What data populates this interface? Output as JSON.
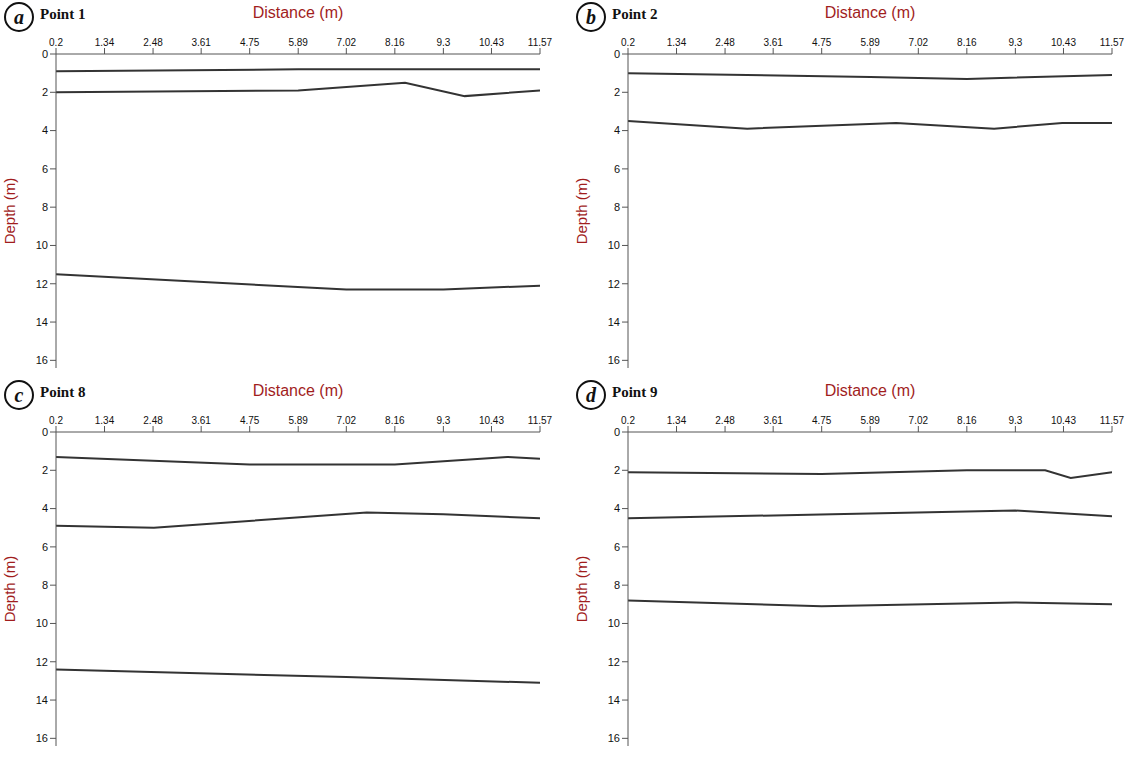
{
  "chart_data": [
    {
      "type": "line",
      "panel": "a",
      "title": "Point 1",
      "x_label": "Distance (m)",
      "y_label": "Depth (m)",
      "xlim": [
        0.2,
        11.57
      ],
      "xticks": [
        0.2,
        1.34,
        2.48,
        3.61,
        4.75,
        5.89,
        7.02,
        8.16,
        9.3,
        10.43,
        11.57
      ],
      "ylim": [
        0,
        16.4
      ],
      "yticks": [
        0,
        2,
        4,
        6,
        8,
        10,
        12,
        14,
        16
      ],
      "grid": false,
      "series": [
        {
          "color": "#333333",
          "x": [
            0.2,
            5.89,
            11.57
          ],
          "values": [
            0.9,
            0.8,
            0.8
          ]
        },
        {
          "color": "#333333",
          "x": [
            0.2,
            5.89,
            8.4,
            9.8,
            11.57
          ],
          "values": [
            2.0,
            1.9,
            1.5,
            2.2,
            1.9
          ]
        },
        {
          "color": "#333333",
          "x": [
            0.2,
            7.02,
            9.3,
            11.57
          ],
          "values": [
            11.5,
            12.3,
            12.3,
            12.1
          ]
        }
      ]
    },
    {
      "type": "line",
      "panel": "b",
      "title": "Point 2",
      "x_label": "Distance (m)",
      "y_label": "Depth (m)",
      "xlim": [
        0.2,
        11.57
      ],
      "xticks": [
        0.2,
        1.34,
        2.48,
        3.61,
        4.75,
        5.89,
        7.02,
        8.16,
        9.3,
        10.43,
        11.57
      ],
      "ylim": [
        0,
        16.4
      ],
      "yticks": [
        0,
        2,
        4,
        6,
        8,
        10,
        12,
        14,
        16
      ],
      "grid": false,
      "series": [
        {
          "color": "#333333",
          "x": [
            0.2,
            5.89,
            8.16,
            11.57
          ],
          "values": [
            1.0,
            1.2,
            1.3,
            1.1
          ]
        },
        {
          "color": "#333333",
          "x": [
            0.2,
            3.0,
            6.5,
            8.8,
            10.4,
            11.57
          ],
          "values": [
            3.5,
            3.9,
            3.6,
            3.9,
            3.6,
            3.6
          ]
        }
      ]
    },
    {
      "type": "line",
      "panel": "c",
      "title": "Point 8",
      "x_label": "Distance (m)",
      "y_label": "Depth (m)",
      "xlim": [
        0.2,
        11.57
      ],
      "xticks": [
        0.2,
        1.34,
        2.48,
        3.61,
        4.75,
        5.89,
        7.02,
        8.16,
        9.3,
        10.43,
        11.57
      ],
      "ylim": [
        0,
        16.4
      ],
      "yticks": [
        0,
        2,
        4,
        6,
        8,
        10,
        12,
        14,
        16
      ],
      "grid": false,
      "series": [
        {
          "color": "#333333",
          "x": [
            0.2,
            4.75,
            8.16,
            10.8,
            11.57
          ],
          "values": [
            1.3,
            1.7,
            1.7,
            1.3,
            1.4
          ]
        },
        {
          "color": "#333333",
          "x": [
            0.2,
            2.5,
            7.5,
            9.3,
            11.57
          ],
          "values": [
            4.9,
            5.0,
            4.2,
            4.3,
            4.5
          ]
        },
        {
          "color": "#333333",
          "x": [
            0.2,
            7.02,
            11.57
          ],
          "values": [
            12.4,
            12.8,
            13.1
          ]
        }
      ]
    },
    {
      "type": "line",
      "panel": "d",
      "title": "Point 9",
      "x_label": "Distance (m)",
      "y_label": "Depth (m)",
      "xlim": [
        0.2,
        11.57
      ],
      "xticks": [
        0.2,
        1.34,
        2.48,
        3.61,
        4.75,
        5.89,
        7.02,
        8.16,
        9.3,
        10.43,
        11.57
      ],
      "ylim": [
        0,
        16.4
      ],
      "yticks": [
        0,
        2,
        4,
        6,
        8,
        10,
        12,
        14,
        16
      ],
      "grid": false,
      "series": [
        {
          "color": "#333333",
          "x": [
            0.2,
            4.75,
            8.16,
            10.0,
            10.6,
            11.57
          ],
          "values": [
            2.1,
            2.2,
            2.0,
            2.0,
            2.4,
            2.1
          ]
        },
        {
          "color": "#333333",
          "x": [
            0.2,
            5.0,
            9.3,
            11.57
          ],
          "values": [
            4.5,
            4.3,
            4.1,
            4.4
          ]
        },
        {
          "color": "#333333",
          "x": [
            0.2,
            4.75,
            9.3,
            11.57
          ],
          "values": [
            8.8,
            9.1,
            8.9,
            9.0
          ]
        }
      ]
    }
  ]
}
